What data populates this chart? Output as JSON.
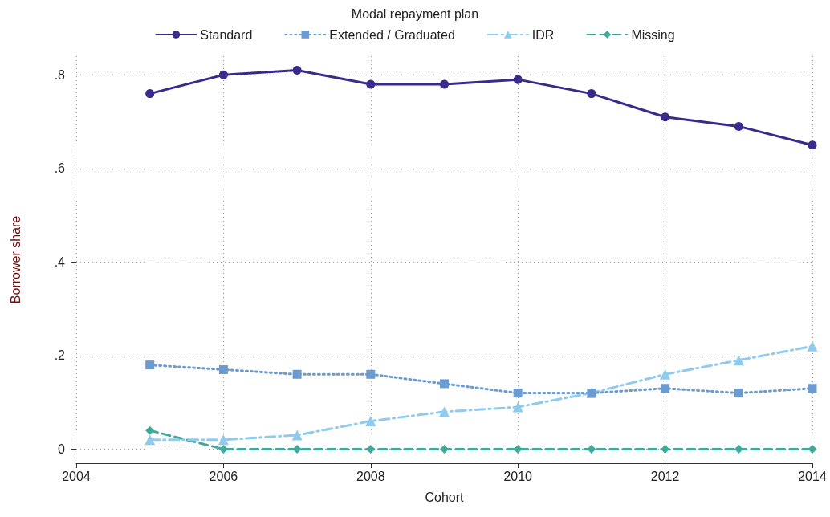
{
  "chart_data": {
    "type": "line",
    "legend_title": "Modal repayment plan",
    "xlabel": "Cohort",
    "ylabel": "Borrower share",
    "x": [
      2005,
      2006,
      2007,
      2008,
      2009,
      2010,
      2011,
      2012,
      2013,
      2014
    ],
    "xlim": [
      2004,
      2014
    ],
    "xticks": [
      2004,
      2006,
      2008,
      2010,
      2012,
      2014
    ],
    "ylim": [
      -0.03,
      0.84
    ],
    "yticks": [
      {
        "value": 0,
        "label": "0"
      },
      {
        "value": 0.2,
        "label": ".2"
      },
      {
        "value": 0.4,
        "label": ".4"
      },
      {
        "value": 0.6,
        "label": ".6"
      },
      {
        "value": 0.8,
        "label": ".8"
      }
    ],
    "grid": true,
    "legend": "top",
    "series": [
      {
        "name": "Standard",
        "color": "#3a2a8c",
        "marker": "circle",
        "line_style": "solid",
        "values": [
          0.76,
          0.8,
          0.81,
          0.78,
          0.78,
          0.79,
          0.76,
          0.71,
          0.69,
          0.65
        ]
      },
      {
        "name": "Extended / Graduated",
        "color": "#6a9bd1",
        "marker": "square",
        "line_style": "dotted",
        "values": [
          0.18,
          0.17,
          0.16,
          0.16,
          0.14,
          0.12,
          0.12,
          0.13,
          0.12,
          0.13
        ]
      },
      {
        "name": "IDR",
        "color": "#8ecbee",
        "marker": "triangle",
        "line_style": "dashdot",
        "values": [
          0.02,
          0.02,
          0.03,
          0.06,
          0.08,
          0.09,
          0.12,
          0.16,
          0.19,
          0.22
        ]
      },
      {
        "name": "Missing",
        "color": "#3fa99a",
        "marker": "diamond",
        "line_style": "dashed",
        "values": [
          0.04,
          0.0,
          0.0,
          0.0,
          0.0,
          0.0,
          0.0,
          0.0,
          0.0,
          0.0
        ]
      }
    ]
  }
}
